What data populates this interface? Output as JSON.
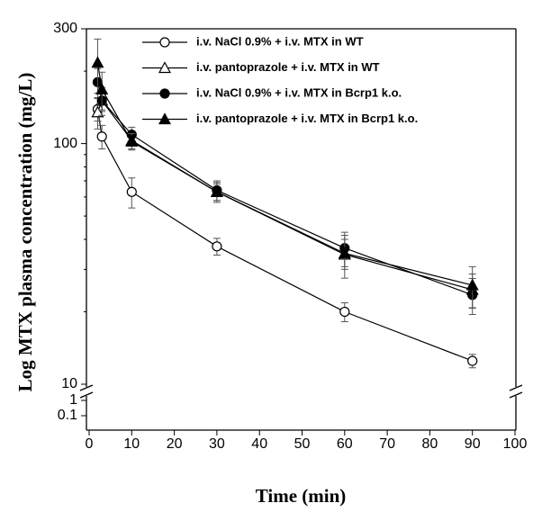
{
  "chart_data": {
    "type": "line",
    "x_label": "Time (min)",
    "y_label": "Log MTX plasma concentration (mg/L)",
    "x": [
      2,
      3,
      10,
      30,
      60,
      90
    ],
    "xlim": [
      0,
      100
    ],
    "xticks": [
      0,
      10,
      20,
      30,
      40,
      50,
      60,
      70,
      80,
      90,
      100
    ],
    "ylim": [
      10,
      300
    ],
    "yticks": [
      10,
      100,
      300
    ],
    "log_y": true,
    "lower_ylim": [
      0.1,
      1
    ],
    "lower_yticks": [
      1,
      0.1
    ],
    "series": [
      {
        "name": "i.v. NaCl 0.9% + i.v. MTX in WT",
        "color": "#000000",
        "marker": "circle-open",
        "values": [
          139,
          107,
          63,
          37.4,
          20,
          12.5
        ],
        "errors": [
          15,
          12,
          9,
          3,
          1.8,
          0.8
        ]
      },
      {
        "name": "i.v. pantoprazole + i.v. MTX in WT",
        "color": "#000000",
        "marker": "triangle-open",
        "values": [
          135,
          151,
          103,
          63,
          34.6,
          24.7
        ],
        "errors": [
          20,
          15,
          8,
          5,
          7,
          4
        ]
      },
      {
        "name": "i.v. NaCl 0.9% + i.v. MTX in Bcrp1 k.o.",
        "color": "#000000",
        "marker": "circle-filled",
        "values": [
          180,
          151,
          109,
          64,
          36.8,
          23.5
        ],
        "errors": [
          25,
          20,
          8,
          6,
          6,
          4
        ]
      },
      {
        "name": "i.v. pantoprazole + i.v. MTX in Bcrp1 k.o.",
        "color": "#000000",
        "marker": "triangle-filled",
        "values": [
          217,
          168,
          102,
          63,
          35,
          25.8
        ],
        "errors": [
          55,
          30,
          8,
          6,
          5,
          5
        ]
      }
    ]
  }
}
